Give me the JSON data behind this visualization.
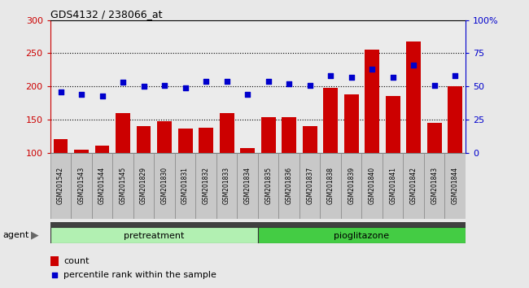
{
  "title": "GDS4132 / 238066_at",
  "samples": [
    "GSM201542",
    "GSM201543",
    "GSM201544",
    "GSM201545",
    "GSM201829",
    "GSM201830",
    "GSM201831",
    "GSM201832",
    "GSM201833",
    "GSM201834",
    "GSM201835",
    "GSM201836",
    "GSM201837",
    "GSM201838",
    "GSM201839",
    "GSM201840",
    "GSM201841",
    "GSM201842",
    "GSM201843",
    "GSM201844"
  ],
  "counts": [
    121,
    105,
    110,
    160,
    140,
    147,
    136,
    138,
    160,
    107,
    154,
    154,
    140,
    198,
    188,
    255,
    186,
    268,
    145,
    200
  ],
  "percentile_ranks": [
    46,
    44,
    43,
    53,
    50,
    51,
    49,
    54,
    54,
    44,
    54,
    52,
    51,
    58,
    57,
    63,
    57,
    66,
    51,
    58
  ],
  "bar_color": "#cc0000",
  "dot_color": "#0000cc",
  "pretreatment_color": "#b2f0b2",
  "pioglitazone_color": "#44cc44",
  "pretreatment_n": 10,
  "pioglitazone_n": 10,
  "ylim_left": [
    100,
    300
  ],
  "ylim_right": [
    0,
    100
  ],
  "yticks_left": [
    100,
    150,
    200,
    250,
    300
  ],
  "yticks_right": [
    0,
    25,
    50,
    75,
    100
  ],
  "ytick_labels_right": [
    "0",
    "25",
    "50",
    "75",
    "100%"
  ],
  "grid_lines": [
    150,
    200,
    250
  ],
  "legend_count_label": "count",
  "legend_percentile_label": "percentile rank within the sample",
  "agent_label": "agent",
  "pretreatment_label": "pretreatment",
  "pioglitazone_label": "pioglitazone",
  "plot_bg_color": "#ffffff",
  "label_box_color": "#c8c8c8",
  "fig_bg_color": "#e8e8e8"
}
